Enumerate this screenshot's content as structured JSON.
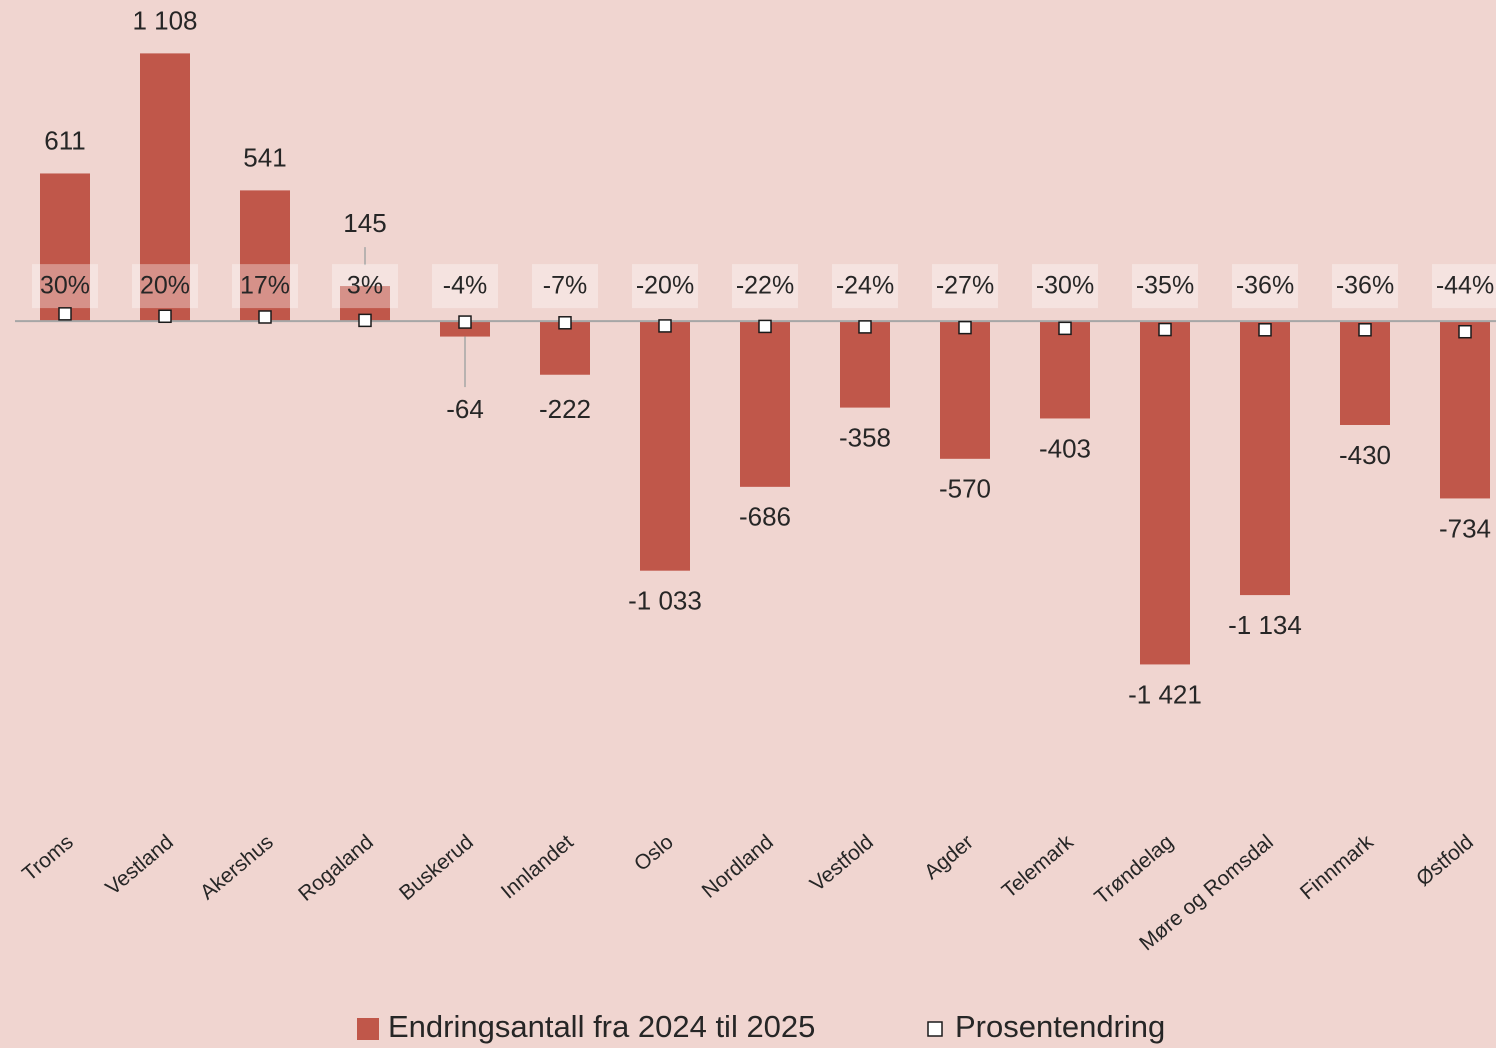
{
  "chart_data": {
    "type": "bar",
    "categories": [
      "Troms",
      "Vestland",
      "Akershus",
      "Rogaland",
      "Buskerud",
      "Innlandet",
      "Oslo",
      "Nordland",
      "Vestfold",
      "Agder",
      "Telemark",
      "Trøndelag",
      "Møre og Romsdal",
      "Finnmark",
      "Østfold"
    ],
    "series": [
      {
        "name": "Endringsantall fra 2024 til 2025",
        "type": "bar",
        "color": "#c0574a",
        "values": [
          611,
          1108,
          541,
          145,
          -64,
          -222,
          -1033,
          -686,
          -358,
          -570,
          -403,
          -1421,
          -1134,
          -430,
          -734
        ],
        "value_labels": [
          "611",
          "1 108",
          "541",
          "145",
          "-64",
          "-222",
          "-1 033",
          "-686",
          "-358",
          "-570",
          "-403",
          "-1 421",
          "-1 134",
          "-430",
          "-734"
        ]
      },
      {
        "name": "Prosentendring",
        "type": "scatter",
        "color": "#ffffff",
        "values": [
          30,
          20,
          17,
          3,
          -4,
          -7,
          -20,
          -22,
          -24,
          -27,
          -30,
          -35,
          -36,
          -36,
          -44
        ],
        "value_labels": [
          "30%",
          "20%",
          "17%",
          "3%",
          "-4%",
          "-7%",
          "-20%",
          "-22%",
          "-24%",
          "-27%",
          "-30%",
          "-35%",
          "-36%",
          "-36%",
          "-44%"
        ]
      }
    ],
    "ylim": [
      -1800,
      1300
    ],
    "legend": "bottom"
  }
}
